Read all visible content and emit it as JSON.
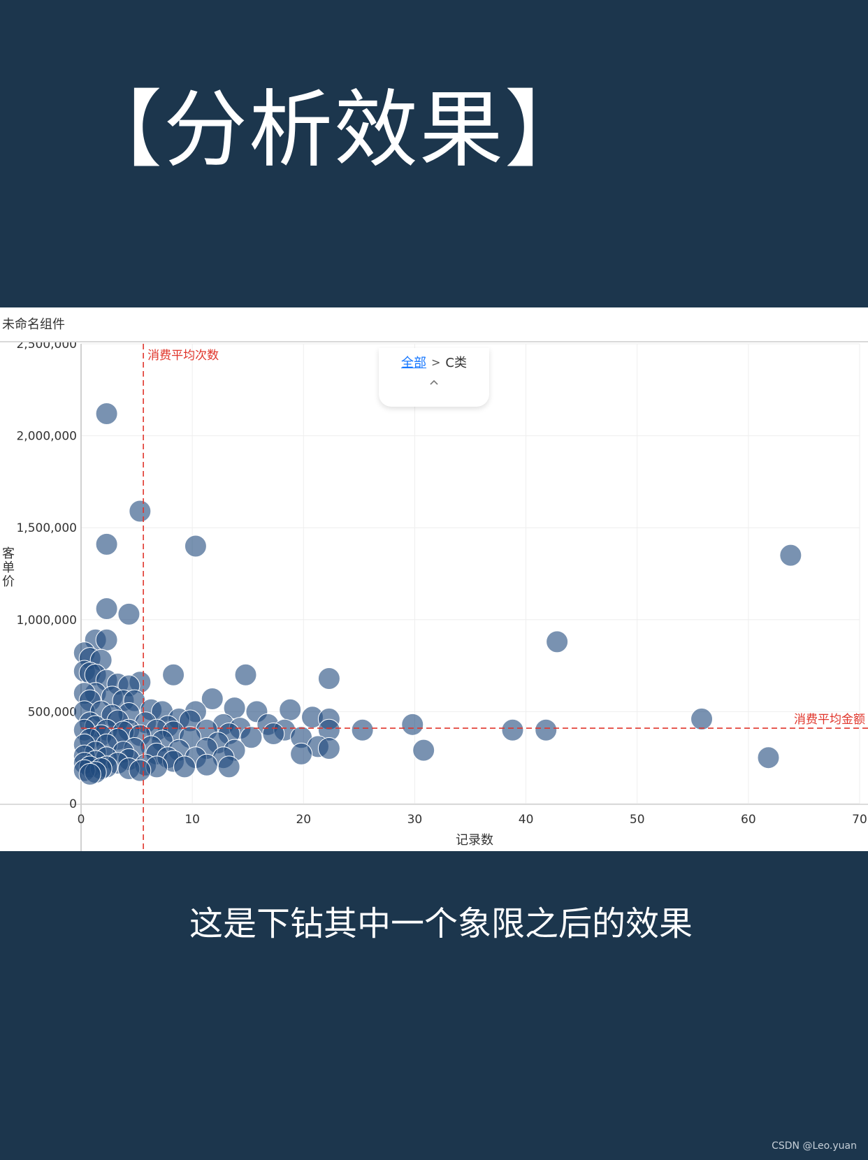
{
  "headline": "【分析效果】",
  "panel": {
    "title": "未命名组件",
    "breadcrumb": {
      "root": "全部",
      "separator": ">",
      "current": "C类",
      "toggle_icon": "chevron-up-icon"
    }
  },
  "caption": "这是下钻其中一个象限之后的效果",
  "watermark": "CSDN @Leo.yuan",
  "colors": {
    "background": "#1c364d",
    "point": "#1f497d",
    "reference_line": "#e0352b",
    "breadcrumb_link": "#1677ff"
  },
  "chart_data": {
    "type": "scatter",
    "xlabel": "记录数",
    "ylabel": "客单价",
    "xlim": [
      0,
      70
    ],
    "ylim": [
      0,
      2500000
    ],
    "x_ticks": [
      "0",
      "10",
      "20",
      "30",
      "40",
      "50",
      "60",
      "70"
    ],
    "y_ticks": [
      "0",
      "500,000",
      "1,000,000",
      "1,500,000",
      "2,000,000",
      "2,500,000"
    ],
    "grid": true,
    "reference_lines": [
      {
        "axis": "x",
        "value": 5.6,
        "label": "消费平均次数"
      },
      {
        "axis": "y",
        "value": 410000,
        "label": "消费平均金额"
      }
    ],
    "points": [
      [
        2.3,
        2120000
      ],
      [
        5.3,
        1590000
      ],
      [
        2.3,
        1410000
      ],
      [
        10.3,
        1400000
      ],
      [
        63.8,
        1350000
      ],
      [
        2.3,
        1060000
      ],
      [
        4.3,
        1030000
      ],
      [
        1.3,
        890000
      ],
      [
        2.3,
        890000
      ],
      [
        42.8,
        880000
      ],
      [
        0.3,
        820000
      ],
      [
        0.8,
        790000
      ],
      [
        1.8,
        780000
      ],
      [
        0.3,
        720000
      ],
      [
        0.8,
        710000
      ],
      [
        1.3,
        700000
      ],
      [
        8.3,
        700000
      ],
      [
        14.8,
        700000
      ],
      [
        22.3,
        680000
      ],
      [
        2.3,
        670000
      ],
      [
        5.3,
        660000
      ],
      [
        3.3,
        650000
      ],
      [
        4.3,
        640000
      ],
      [
        1.3,
        600000
      ],
      [
        0.3,
        600000
      ],
      [
        2.8,
        580000
      ],
      [
        11.8,
        570000
      ],
      [
        0.8,
        560000
      ],
      [
        3.8,
        560000
      ],
      [
        4.8,
        560000
      ],
      [
        13.8,
        520000
      ],
      [
        18.8,
        510000
      ],
      [
        6.3,
        510000
      ],
      [
        7.3,
        500000
      ],
      [
        10.3,
        500000
      ],
      [
        15.8,
        500000
      ],
      [
        0.3,
        500000
      ],
      [
        1.8,
        500000
      ],
      [
        4.3,
        490000
      ],
      [
        2.8,
        480000
      ],
      [
        20.8,
        470000
      ],
      [
        22.3,
        460000
      ],
      [
        55.8,
        460000
      ],
      [
        8.8,
        460000
      ],
      [
        9.8,
        450000
      ],
      [
        3.3,
        450000
      ],
      [
        5.8,
        440000
      ],
      [
        0.8,
        440000
      ],
      [
        12.8,
        430000
      ],
      [
        16.8,
        430000
      ],
      [
        29.8,
        430000
      ],
      [
        1.3,
        420000
      ],
      [
        7.8,
        420000
      ],
      [
        14.3,
        410000
      ],
      [
        0.3,
        400000
      ],
      [
        2.3,
        400000
      ],
      [
        4.3,
        400000
      ],
      [
        6.8,
        400000
      ],
      [
        11.3,
        400000
      ],
      [
        18.3,
        400000
      ],
      [
        22.3,
        400000
      ],
      [
        25.3,
        400000
      ],
      [
        38.8,
        400000
      ],
      [
        41.8,
        400000
      ],
      [
        3.8,
        390000
      ],
      [
        8.3,
        390000
      ],
      [
        13.3,
        380000
      ],
      [
        17.3,
        380000
      ],
      [
        1.8,
        370000
      ],
      [
        5.3,
        370000
      ],
      [
        9.8,
        360000
      ],
      [
        15.3,
        360000
      ],
      [
        19.8,
        360000
      ],
      [
        0.8,
        350000
      ],
      [
        3.3,
        350000
      ],
      [
        7.3,
        340000
      ],
      [
        12.3,
        330000
      ],
      [
        0.3,
        320000
      ],
      [
        2.3,
        320000
      ],
      [
        6.3,
        310000
      ],
      [
        21.3,
        310000
      ],
      [
        22.3,
        300000
      ],
      [
        11.3,
        300000
      ],
      [
        4.8,
        300000
      ],
      [
        8.8,
        290000
      ],
      [
        13.8,
        290000
      ],
      [
        30.8,
        290000
      ],
      [
        1.3,
        280000
      ],
      [
        3.8,
        280000
      ],
      [
        6.8,
        270000
      ],
      [
        19.8,
        270000
      ],
      [
        0.3,
        260000
      ],
      [
        2.3,
        250000
      ],
      [
        7.8,
        250000
      ],
      [
        10.3,
        250000
      ],
      [
        12.8,
        250000
      ],
      [
        61.8,
        250000
      ],
      [
        4.3,
        240000
      ],
      [
        1.3,
        230000
      ],
      [
        8.3,
        230000
      ],
      [
        0.3,
        220000
      ],
      [
        3.3,
        220000
      ],
      [
        5.8,
        210000
      ],
      [
        11.3,
        210000
      ],
      [
        0.8,
        200000
      ],
      [
        2.3,
        200000
      ],
      [
        6.8,
        200000
      ],
      [
        9.3,
        200000
      ],
      [
        13.3,
        200000
      ],
      [
        1.8,
        190000
      ],
      [
        4.3,
        190000
      ],
      [
        0.3,
        180000
      ],
      [
        1.3,
        170000
      ],
      [
        0.8,
        160000
      ],
      [
        5.3,
        180000
      ]
    ]
  }
}
